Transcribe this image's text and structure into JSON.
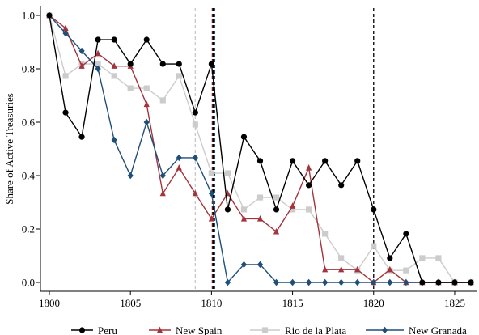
{
  "chart_data": {
    "type": "line",
    "title": "",
    "xlabel": "",
    "ylabel": "Share of Active Treasuries",
    "xlim": [
      1800,
      1826
    ],
    "ylim": [
      0,
      1
    ],
    "xticks": [
      1800,
      1805,
      1810,
      1815,
      1820,
      1825
    ],
    "yticks": [
      0.0,
      0.2,
      0.4,
      0.6,
      0.8,
      1.0
    ],
    "ytick_labels": [
      "0.0",
      "0.2",
      "0.4",
      "0.6",
      "0.8",
      "1.0"
    ],
    "grid": false,
    "legend_position": "bottom",
    "vlines": [
      {
        "x": 1809,
        "color": "#c8c8c8"
      },
      {
        "x": 1810.05,
        "color": "#8b2525"
      },
      {
        "x": 1810.2,
        "color": "#1f4e79"
      },
      {
        "x": 1810.1,
        "color": "#000000"
      },
      {
        "x": 1820,
        "color": "#000000"
      }
    ],
    "x": [
      1800,
      1801,
      1802,
      1803,
      1804,
      1805,
      1806,
      1807,
      1808,
      1809,
      1810,
      1811,
      1812,
      1813,
      1814,
      1815,
      1816,
      1817,
      1818,
      1819,
      1820,
      1821,
      1822,
      1823,
      1824,
      1825,
      1826
    ],
    "series": [
      {
        "name": "Peru",
        "color": "#000000",
        "marker": "circle",
        "values": [
          1.0,
          0.636,
          0.545,
          0.909,
          0.909,
          0.818,
          0.909,
          0.818,
          0.818,
          0.636,
          0.818,
          0.273,
          0.545,
          0.455,
          0.273,
          0.455,
          0.364,
          0.455,
          0.364,
          0.455,
          0.273,
          0.091,
          0.182,
          0.0,
          0.0,
          0.0,
          0.0
        ]
      },
      {
        "name": "New Spain",
        "color": "#a3343c",
        "marker": "triangle",
        "values": [
          1.0,
          0.952,
          0.81,
          0.857,
          0.81,
          0.81,
          0.667,
          0.333,
          0.429,
          0.333,
          0.238,
          0.333,
          0.238,
          0.238,
          0.19,
          0.286,
          0.429,
          0.048,
          0.048,
          0.048,
          0.0,
          0.048,
          0.0,
          0.0,
          0.0,
          0.0,
          0.0
        ]
      },
      {
        "name": "Rio de la Plata",
        "color": "#cccccc",
        "marker": "square",
        "values": [
          1.0,
          0.773,
          0.818,
          0.818,
          0.773,
          0.727,
          0.727,
          0.682,
          0.773,
          0.591,
          0.409,
          0.409,
          0.273,
          0.318,
          0.318,
          0.273,
          0.273,
          0.182,
          0.091,
          0.045,
          0.136,
          0.045,
          0.045,
          0.091,
          0.091,
          0.0,
          0.0
        ]
      },
      {
        "name": "New Granada",
        "color": "#1f4e79",
        "marker": "diamond",
        "values": [
          1.0,
          0.933,
          0.867,
          0.8,
          0.533,
          0.4,
          0.6,
          0.4,
          0.467,
          0.467,
          0.333,
          0.0,
          0.067,
          0.067,
          0.0,
          0.0,
          0.0,
          0.0,
          0.0,
          0.0,
          0.0,
          0.0,
          0.0,
          0.0,
          0.0,
          0.0,
          0.0
        ]
      }
    ]
  }
}
